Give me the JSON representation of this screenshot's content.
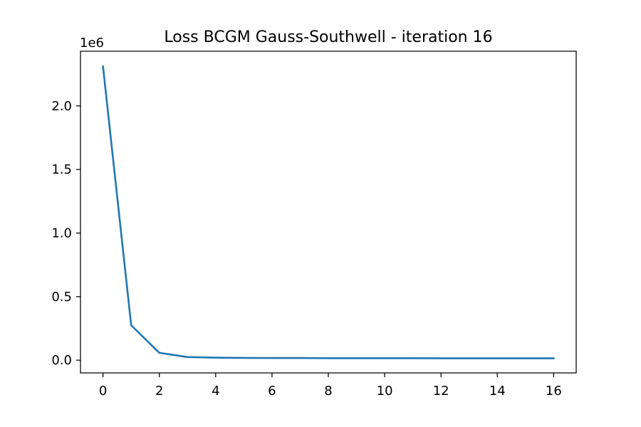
{
  "chart_data": {
    "type": "line",
    "title": "Loss BCGM Gauss-Southwell - iteration 16",
    "xlabel": "",
    "ylabel": "",
    "y_offset_label": "1e6",
    "xlim": [
      -0.8,
      16.8
    ],
    "ylim": [
      -0.1,
      2.43
    ],
    "x_ticks": [
      0,
      2,
      4,
      6,
      8,
      10,
      12,
      14,
      16
    ],
    "x_tick_labels": [
      "0",
      "2",
      "4",
      "6",
      "8",
      "10",
      "12",
      "14",
      "16"
    ],
    "y_ticks": [
      0.0,
      0.5,
      1.0,
      1.5,
      2.0
    ],
    "y_tick_labels": [
      "0.0",
      "0.5",
      "1.0",
      "1.5",
      "2.0"
    ],
    "grid": false,
    "line_color": "#1f77b4",
    "series": [
      {
        "x": [
          0,
          1,
          2,
          3,
          4,
          5,
          6,
          7,
          8,
          9,
          10,
          11,
          12,
          13,
          14,
          15,
          16
        ],
        "values": [
          2.31,
          0.275,
          0.058,
          0.025,
          0.02,
          0.018,
          0.017,
          0.017,
          0.016,
          0.016,
          0.016,
          0.016,
          0.015,
          0.015,
          0.015,
          0.015,
          0.015
        ]
      }
    ]
  }
}
